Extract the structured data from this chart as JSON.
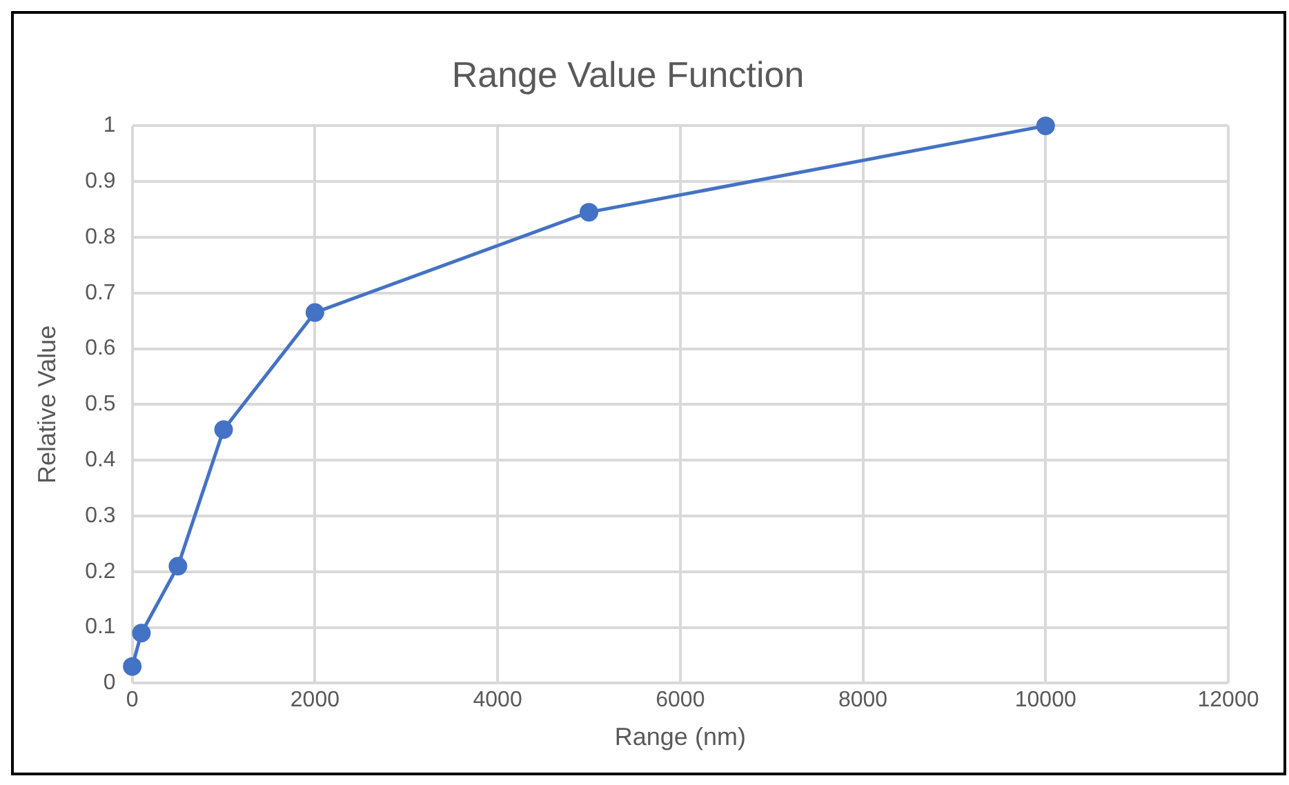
{
  "chart_data": {
    "type": "line",
    "title": "Range Value Function",
    "xlabel": "Range (nm)",
    "ylabel": "Relative Value",
    "x": [
      0,
      100,
      500,
      1000,
      2000,
      5000,
      10000
    ],
    "series": [
      {
        "color": "#4472c4",
        "values": [
          0.03,
          0.09,
          0.21,
          0.455,
          0.665,
          0.845,
          1
        ]
      }
    ],
    "xlim": [
      0,
      12000
    ],
    "xticks": [
      0,
      2000,
      4000,
      6000,
      8000,
      10000,
      12000
    ],
    "ylim": [
      0,
      1
    ],
    "yticks": [
      0,
      0.1,
      0.2,
      0.3,
      0.4,
      0.5,
      0.6,
      0.7,
      0.8,
      0.9,
      1
    ],
    "grid": true,
    "legend": false,
    "marker": "circle",
    "line_style": "solid"
  }
}
